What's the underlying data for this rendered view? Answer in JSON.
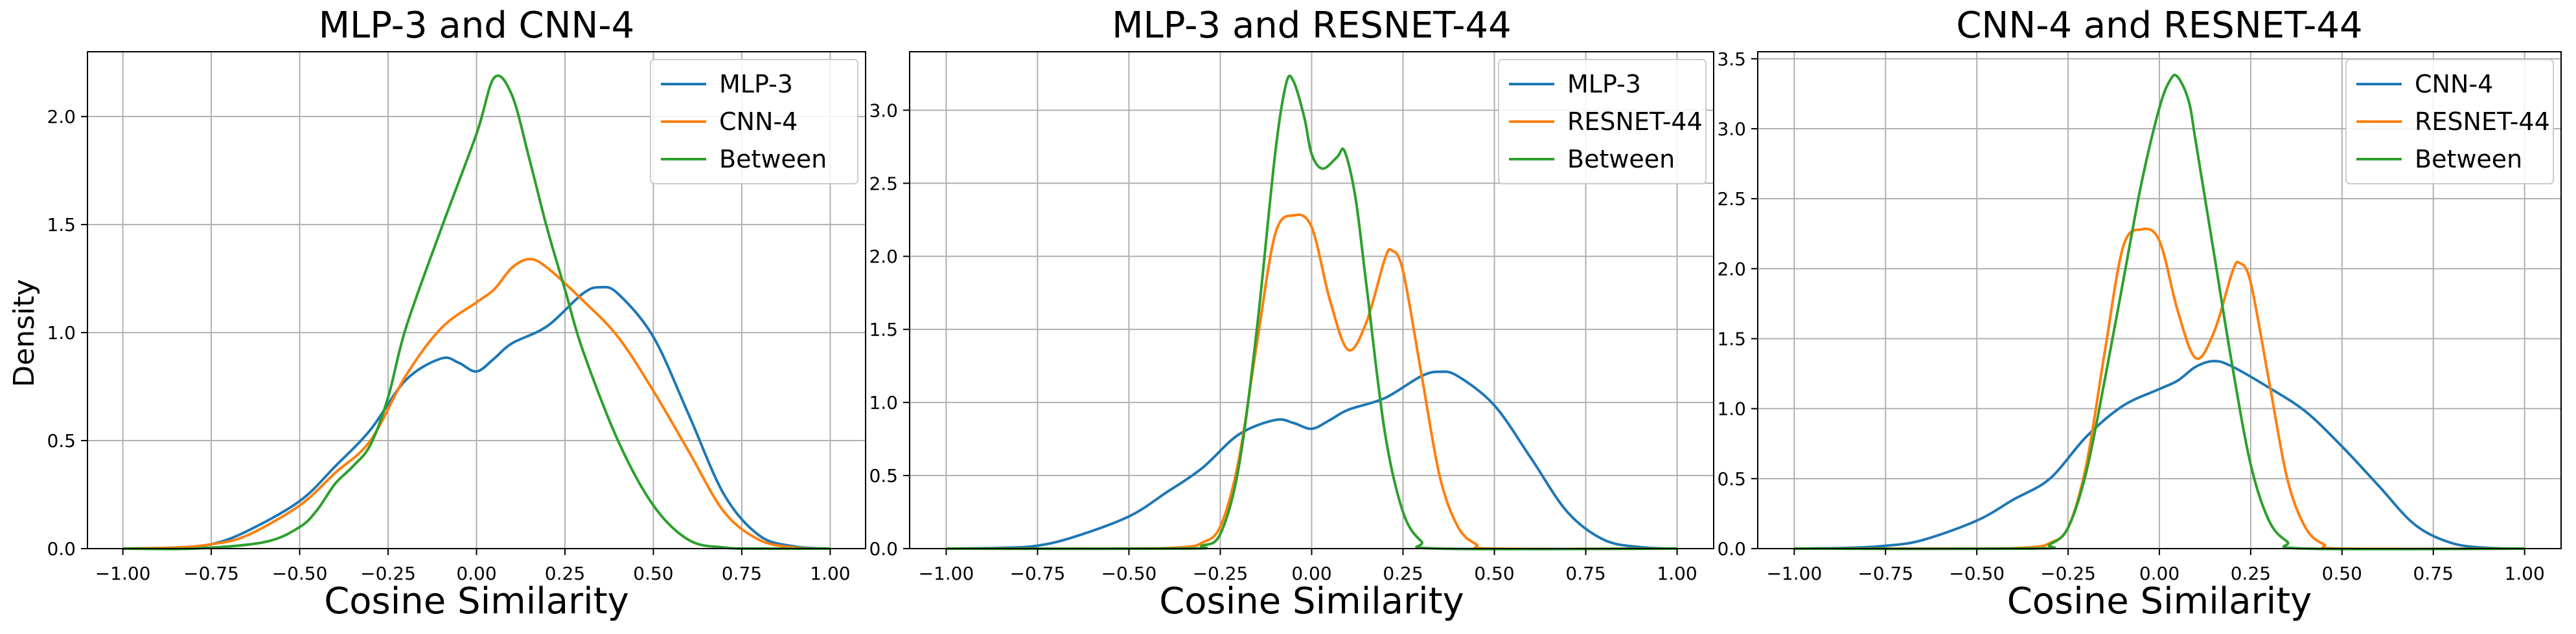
{
  "figure": {
    "ylabel": "Density",
    "xlabel": "Cosine Similarity"
  },
  "colors": {
    "blue": "#1f77b4",
    "orange": "#ff7f0e",
    "green": "#2ca02c",
    "grid": "#b0b0b0"
  },
  "chart_data": [
    {
      "type": "line",
      "title": "MLP-3 and CNN-4",
      "xlabel": "Cosine Similarity",
      "ylabel": "Density",
      "xlim": [
        -1.1,
        1.1
      ],
      "ylim": [
        0,
        2.3
      ],
      "xticks": [
        -1.0,
        -0.75,
        -0.5,
        -0.25,
        0.0,
        0.25,
        0.5,
        0.75,
        1.0
      ],
      "yticks": [
        0.0,
        0.5,
        1.0,
        1.5,
        2.0
      ],
      "grid": true,
      "legend_position": "top-right",
      "series": [
        {
          "name": "MLP-3",
          "color": "#1f77b4",
          "x": [
            -1.0,
            -0.85,
            -0.75,
            -0.65,
            -0.5,
            -0.4,
            -0.3,
            -0.2,
            -0.1,
            -0.05,
            0.0,
            0.05,
            0.1,
            0.2,
            0.3,
            0.35,
            0.4,
            0.5,
            0.6,
            0.7,
            0.8,
            0.9,
            1.0
          ],
          "y": [
            0.0,
            0.005,
            0.02,
            0.08,
            0.22,
            0.38,
            0.55,
            0.78,
            0.88,
            0.86,
            0.82,
            0.88,
            0.95,
            1.03,
            1.18,
            1.21,
            1.18,
            0.98,
            0.62,
            0.25,
            0.06,
            0.01,
            0.0
          ]
        },
        {
          "name": "CNN-4",
          "color": "#ff7f0e",
          "x": [
            -1.0,
            -0.85,
            -0.75,
            -0.65,
            -0.5,
            -0.4,
            -0.3,
            -0.2,
            -0.1,
            0.0,
            0.05,
            0.1,
            0.15,
            0.2,
            0.3,
            0.4,
            0.5,
            0.6,
            0.7,
            0.8,
            0.9,
            1.0
          ],
          "y": [
            0.0,
            0.005,
            0.02,
            0.06,
            0.2,
            0.35,
            0.5,
            0.8,
            1.02,
            1.14,
            1.2,
            1.3,
            1.34,
            1.3,
            1.15,
            0.98,
            0.73,
            0.45,
            0.17,
            0.04,
            0.005,
            0.0
          ]
        },
        {
          "name": "Between",
          "color": "#2ca02c",
          "x": [
            -1.0,
            -0.8,
            -0.6,
            -0.5,
            -0.45,
            -0.4,
            -0.35,
            -0.3,
            -0.25,
            -0.2,
            -0.1,
            0.0,
            0.05,
            0.1,
            0.15,
            0.2,
            0.25,
            0.3,
            0.4,
            0.5,
            0.6,
            0.7,
            0.8,
            1.0
          ],
          "y": [
            0.0,
            0.0,
            0.03,
            0.1,
            0.18,
            0.3,
            0.38,
            0.48,
            0.7,
            1.02,
            1.48,
            1.92,
            2.18,
            2.1,
            1.8,
            1.48,
            1.2,
            0.92,
            0.5,
            0.2,
            0.04,
            0.005,
            0.0,
            0.0
          ]
        }
      ]
    },
    {
      "type": "line",
      "title": "MLP-3 and RESNET-44",
      "xlabel": "Cosine Similarity",
      "ylabel": "",
      "xlim": [
        -1.1,
        1.1
      ],
      "ylim": [
        0,
        3.4
      ],
      "xticks": [
        -1.0,
        -0.75,
        -0.5,
        -0.25,
        0.0,
        0.25,
        0.5,
        0.75,
        1.0
      ],
      "yticks": [
        0.0,
        0.5,
        1.0,
        1.5,
        2.0,
        2.5,
        3.0
      ],
      "grid": true,
      "legend_position": "top-right",
      "series": [
        {
          "name": "MLP-3",
          "color": "#1f77b4",
          "x": [
            -1.0,
            -0.85,
            -0.75,
            -0.65,
            -0.5,
            -0.4,
            -0.3,
            -0.2,
            -0.1,
            -0.05,
            0.0,
            0.05,
            0.1,
            0.2,
            0.3,
            0.35,
            0.4,
            0.5,
            0.6,
            0.7,
            0.8,
            0.9,
            1.0
          ],
          "y": [
            0.0,
            0.005,
            0.02,
            0.08,
            0.22,
            0.38,
            0.55,
            0.78,
            0.88,
            0.86,
            0.82,
            0.88,
            0.95,
            1.03,
            1.18,
            1.21,
            1.18,
            0.98,
            0.62,
            0.25,
            0.06,
            0.01,
            0.0
          ]
        },
        {
          "name": "RESNET-44",
          "color": "#ff7f0e",
          "x": [
            -1.0,
            -0.5,
            -0.35,
            -0.3,
            -0.25,
            -0.2,
            -0.15,
            -0.1,
            -0.05,
            0.0,
            0.05,
            0.1,
            0.15,
            0.2,
            0.22,
            0.25,
            0.3,
            0.35,
            0.4,
            0.45,
            0.5,
            1.0
          ],
          "y": [
            0.0,
            0.0,
            0.01,
            0.04,
            0.15,
            0.6,
            1.4,
            2.15,
            2.28,
            2.2,
            1.7,
            1.36,
            1.55,
            1.98,
            2.04,
            1.9,
            1.2,
            0.5,
            0.15,
            0.03,
            0.0,
            0.0
          ]
        },
        {
          "name": "Between",
          "color": "#2ca02c",
          "x": [
            -1.0,
            -0.35,
            -0.3,
            -0.25,
            -0.2,
            -0.15,
            -0.1,
            -0.07,
            -0.05,
            -0.02,
            0.0,
            0.03,
            0.07,
            0.09,
            0.12,
            0.15,
            0.2,
            0.25,
            0.3,
            0.35,
            1.0
          ],
          "y": [
            0.0,
            0.0,
            0.02,
            0.1,
            0.55,
            1.5,
            2.7,
            3.18,
            3.2,
            2.95,
            2.7,
            2.6,
            2.68,
            2.72,
            2.4,
            1.8,
            0.8,
            0.25,
            0.05,
            0.0,
            0.0
          ]
        }
      ]
    },
    {
      "type": "line",
      "title": "CNN-4 and RESNET-44",
      "xlabel": "Cosine Similarity",
      "ylabel": "",
      "xlim": [
        -1.1,
        1.1
      ],
      "ylim": [
        0,
        3.55
      ],
      "xticks": [
        -1.0,
        -0.75,
        -0.5,
        -0.25,
        0.0,
        0.25,
        0.5,
        0.75,
        1.0
      ],
      "yticks": [
        0.0,
        0.5,
        1.0,
        1.5,
        2.0,
        2.5,
        3.0,
        3.5
      ],
      "grid": true,
      "legend_position": "top-right",
      "series": [
        {
          "name": "CNN-4",
          "color": "#1f77b4",
          "x": [
            -1.0,
            -0.85,
            -0.75,
            -0.65,
            -0.5,
            -0.4,
            -0.3,
            -0.2,
            -0.1,
            0.0,
            0.05,
            0.1,
            0.15,
            0.2,
            0.3,
            0.4,
            0.5,
            0.6,
            0.7,
            0.8,
            0.9,
            1.0
          ],
          "y": [
            0.0,
            0.005,
            0.02,
            0.06,
            0.2,
            0.35,
            0.5,
            0.8,
            1.02,
            1.14,
            1.2,
            1.3,
            1.34,
            1.3,
            1.15,
            0.98,
            0.73,
            0.45,
            0.17,
            0.04,
            0.005,
            0.0
          ]
        },
        {
          "name": "RESNET-44",
          "color": "#ff7f0e",
          "x": [
            -1.0,
            -0.5,
            -0.35,
            -0.3,
            -0.25,
            -0.2,
            -0.15,
            -0.1,
            -0.05,
            0.0,
            0.05,
            0.1,
            0.15,
            0.2,
            0.22,
            0.25,
            0.3,
            0.35,
            0.4,
            0.45,
            0.5,
            1.0
          ],
          "y": [
            0.0,
            0.0,
            0.01,
            0.04,
            0.15,
            0.6,
            1.4,
            2.15,
            2.28,
            2.2,
            1.7,
            1.36,
            1.55,
            1.98,
            2.04,
            1.9,
            1.2,
            0.5,
            0.15,
            0.03,
            0.0,
            0.0
          ]
        },
        {
          "name": "Between",
          "color": "#2ca02c",
          "x": [
            -1.0,
            -0.35,
            -0.3,
            -0.25,
            -0.2,
            -0.15,
            -0.1,
            -0.05,
            0.0,
            0.03,
            0.05,
            0.08,
            0.1,
            0.15,
            0.2,
            0.25,
            0.3,
            0.35,
            0.4,
            1.0
          ],
          "y": [
            0.0,
            0.0,
            0.03,
            0.15,
            0.55,
            1.2,
            1.9,
            2.6,
            3.15,
            3.35,
            3.37,
            3.2,
            2.9,
            2.1,
            1.3,
            0.6,
            0.2,
            0.05,
            0.0,
            0.0
          ]
        }
      ]
    }
  ]
}
